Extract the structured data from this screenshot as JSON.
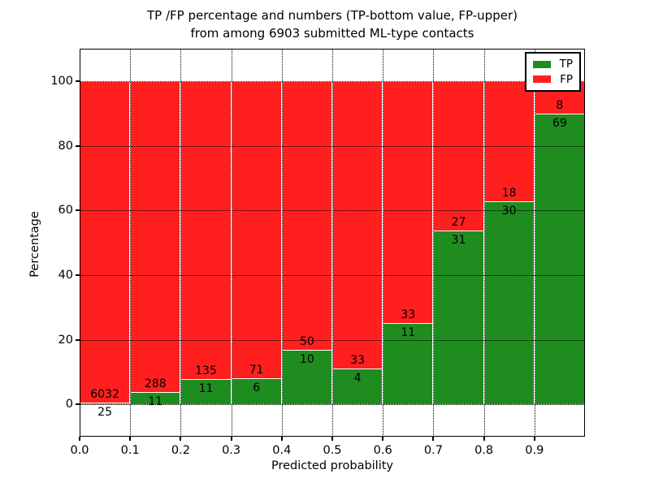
{
  "chart_data": {
    "type": "bar",
    "stacked": true,
    "normalized_to_percent": true,
    "title": "TP /FP percentage and numbers (TP-bottom value, FP-upper) from among 6903 submitted ML-type contacts",
    "title_lines": [
      "TP /FP percentage and numbers (TP-bottom value, FP-upper)",
      "from among 6903 submitted ML-type contacts"
    ],
    "total_contacts": 6903,
    "xlabel": "Predicted probability",
    "ylabel": "Percentage",
    "categories": [
      "0.0",
      "0.1",
      "0.2",
      "0.3",
      "0.4",
      "0.5",
      "0.6",
      "0.7",
      "0.8",
      "0.9"
    ],
    "bin_width": 0.1,
    "series": [
      {
        "name": "TP",
        "color": "#1e8c1e",
        "values": [
          25,
          11,
          11,
          6,
          10,
          4,
          11,
          31,
          30,
          69
        ]
      },
      {
        "name": "FP",
        "color": "#ff1f1f",
        "values": [
          6032,
          288,
          135,
          71,
          50,
          33,
          33,
          27,
          18,
          8
        ]
      }
    ],
    "tp_percent_of_bar": [
      0.4,
      3.7,
      7.5,
      7.8,
      16.7,
      10.8,
      25.0,
      53.4,
      62.5,
      89.6
    ],
    "x_ticks": [
      "0.0",
      "0.1",
      "0.2",
      "0.3",
      "0.4",
      "0.5",
      "0.6",
      "0.7",
      "0.8",
      "0.9"
    ],
    "y_ticks": [
      "0",
      "20",
      "40",
      "60",
      "80",
      "100"
    ],
    "xlim": [
      0.0,
      1.0
    ],
    "ylim": [
      -10,
      110
    ],
    "grid": "dotted-both-axes",
    "bar_edge_color": "#ffffff",
    "legend": {
      "position": "upper right",
      "labels": [
        "TP",
        "FP"
      ]
    }
  }
}
